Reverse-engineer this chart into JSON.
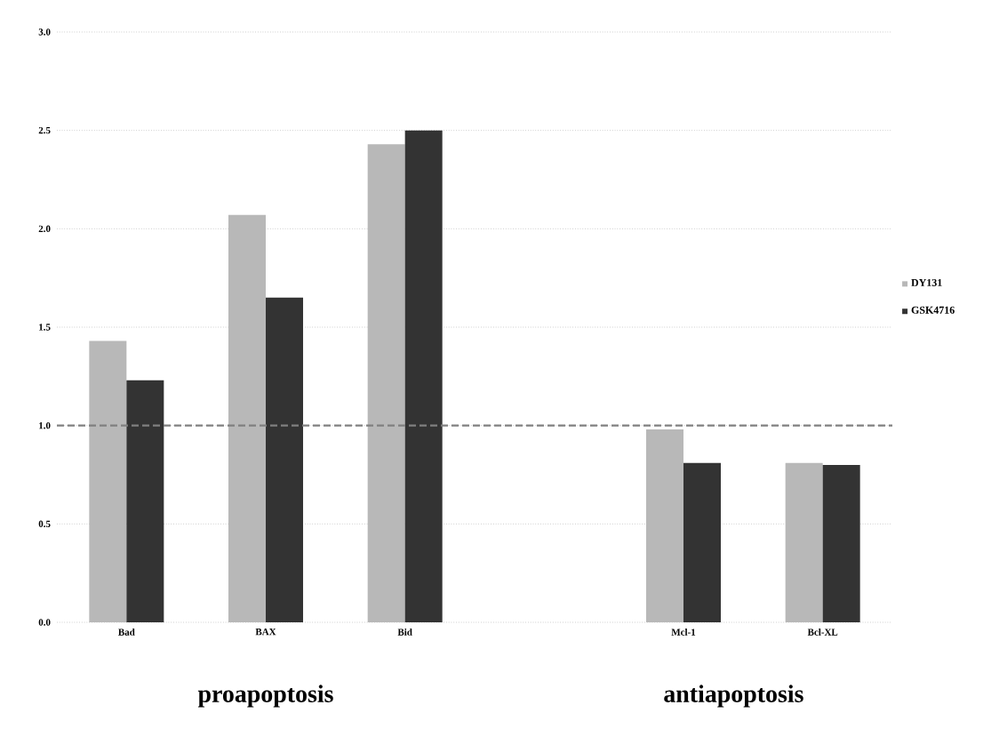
{
  "chart_data": {
    "type": "bar",
    "categories": [
      "Bad",
      "BAX",
      "Bid",
      null,
      "Mcl-1",
      "Bcl-XL"
    ],
    "series": [
      {
        "name": "DY131",
        "color": "#b8b8b8",
        "values": [
          1.43,
          2.07,
          2.43,
          null,
          0.98,
          0.81
        ]
      },
      {
        "name": "GSK4716",
        "color": "#333333",
        "values": [
          1.23,
          1.65,
          2.5,
          null,
          0.81,
          0.8
        ]
      }
    ],
    "ylim": [
      0,
      3
    ],
    "yticks": [
      {
        "value": 0,
        "label": "0.0"
      },
      {
        "value": 0.5,
        "label": "0.5"
      },
      {
        "value": 1,
        "label": "1.0"
      },
      {
        "value": 1.5,
        "label": "1.5"
      },
      {
        "value": 2,
        "label": "2.0"
      },
      {
        "value": 2.5,
        "label": "2.5"
      },
      {
        "value": 3,
        "label": "3.0"
      }
    ],
    "grid": "y",
    "legend": "right",
    "ref_lines": [
      {
        "axis": "y",
        "value": 1,
        "color": "#808080",
        "line_style": "dashed"
      }
    ],
    "annotations": [
      "proapoptosis",
      "antiapoptosis"
    ]
  }
}
